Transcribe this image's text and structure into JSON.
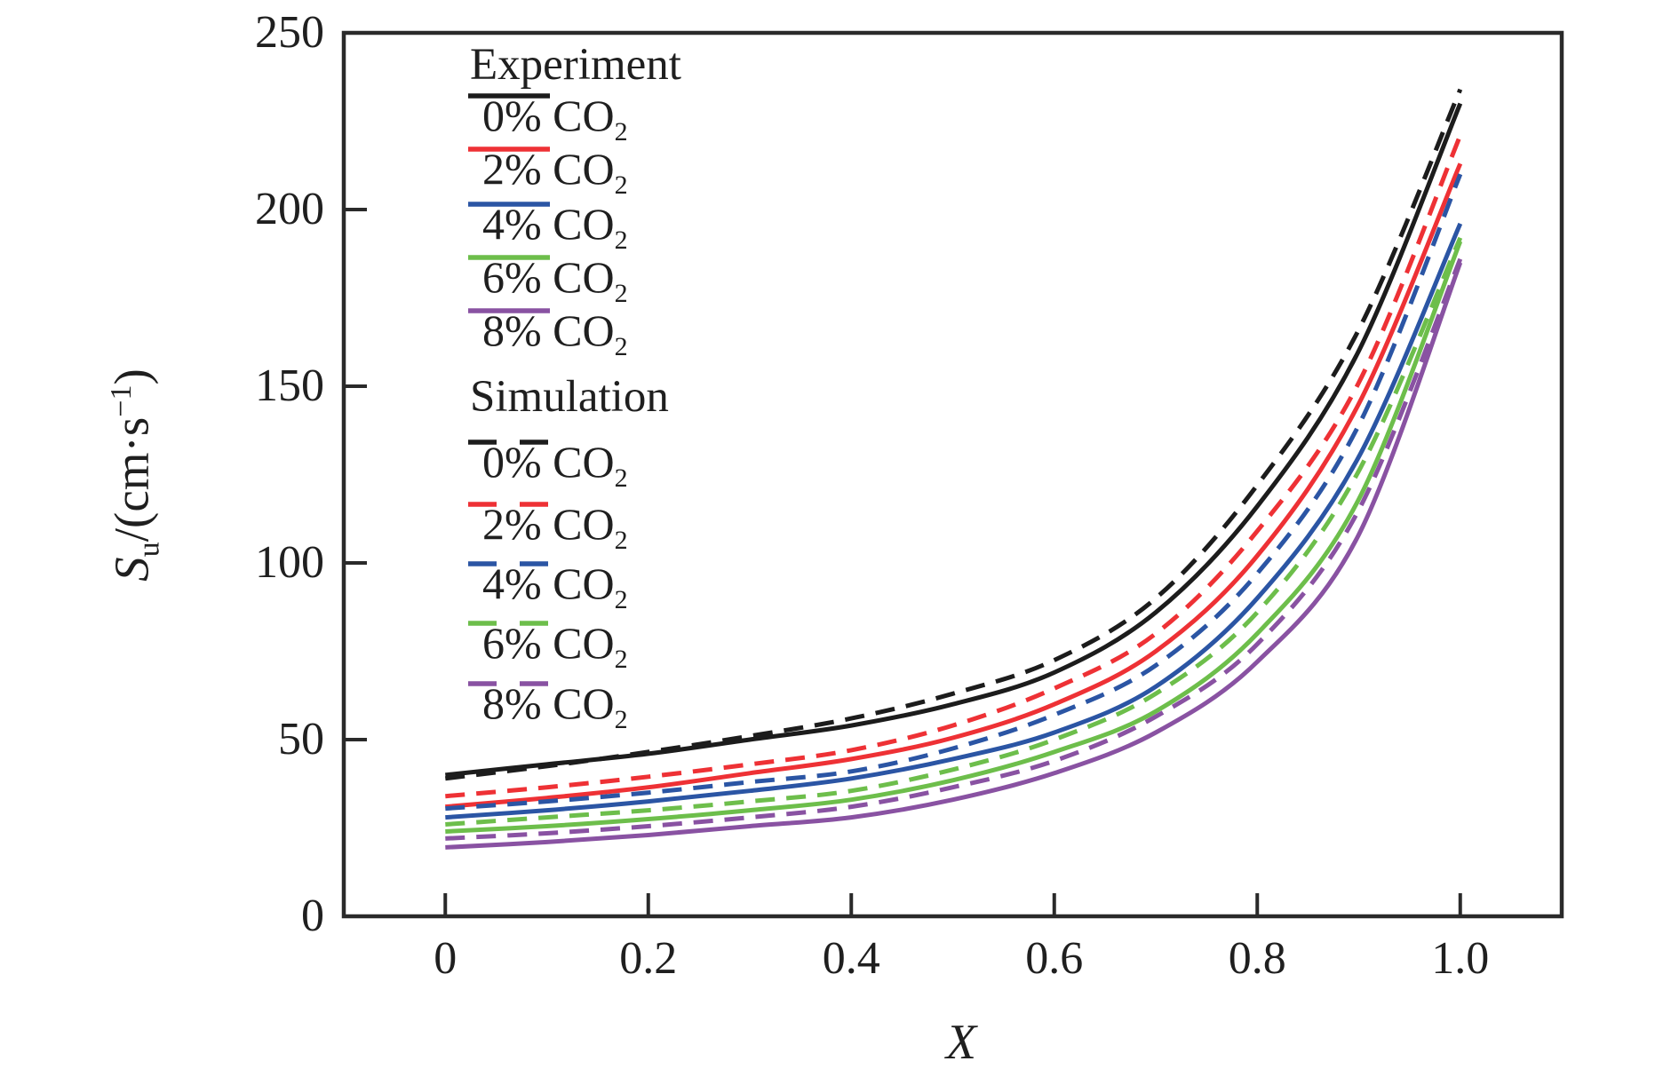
{
  "chart_data": {
    "type": "line",
    "title": "",
    "xlabel": "X",
    "ylabel": "Su/(cm·s−1)",
    "ylabel_parts": {
      "symbol": "S",
      "subscript": "u",
      "unit_open": "/(cm·s",
      "exponent": "−1",
      "unit_close": ")"
    },
    "xlim": [
      -0.1,
      1.1
    ],
    "ylim": [
      0,
      250
    ],
    "grid": false,
    "legend_position": "upper-left-inside",
    "x_ticks": {
      "values": [
        0,
        0.2,
        0.4,
        0.6,
        0.8,
        1.0
      ],
      "labels": [
        "0",
        "0.2",
        "0.4",
        "0.6",
        "0.8",
        "1.0"
      ]
    },
    "y_ticks": {
      "values": [
        0,
        50,
        100,
        150,
        200,
        250
      ],
      "labels": [
        "0",
        "50",
        "100",
        "150",
        "200",
        "250"
      ]
    },
    "x": [
      0,
      0.1,
      0.2,
      0.3,
      0.4,
      0.5,
      0.6,
      0.7,
      0.8,
      0.9,
      1.0
    ],
    "groups": [
      {
        "name": "Experiment",
        "style": "solid",
        "series": [
          {
            "label": "0% CO",
            "label_sub": "2",
            "color": "#1c1c1c",
            "values": [
              40,
              43,
              46,
              50,
              54,
              60,
              69,
              86,
              116,
              160,
              230
            ]
          },
          {
            "label": "2% CO",
            "label_sub": "2",
            "color": "#ee3135",
            "values": [
              31,
              33.5,
              36.5,
              40.5,
              44.5,
              50.5,
              60,
              75,
              102,
              145,
              213
            ]
          },
          {
            "label": "4% CO",
            "label_sub": "2",
            "color": "#2b55a4",
            "values": [
              28,
              30,
              32.5,
              35.5,
              39,
              44.5,
              52,
              65,
              90,
              130,
              196
            ]
          },
          {
            "label": "6% CO",
            "label_sub": "2",
            "color": "#6dbe4b",
            "values": [
              24,
              25.5,
              27.5,
              30,
              33,
              38.5,
              46.5,
              58,
              80,
              118,
              191
            ]
          },
          {
            "label": "8% CO",
            "label_sub": "2",
            "color": "#8952a2",
            "values": [
              19.5,
              21,
              23,
              25.5,
              28,
              33,
              40.5,
              52,
              72,
              108,
              185
            ]
          }
        ]
      },
      {
        "name": "Simulation",
        "style": "dashed",
        "series": [
          {
            "label": "0% CO",
            "label_sub": "2",
            "color": "#1c1c1c",
            "values": [
              39,
              42.5,
              46.5,
              51,
              56,
              63,
              72.5,
              90,
              122,
              166,
              234
            ]
          },
          {
            "label": "2% CO",
            "label_sub": "2",
            "color": "#ee3135",
            "values": [
              34,
              36.5,
              39.5,
              43,
              47,
              54,
              64.5,
              80,
              109,
              151,
              221
            ]
          },
          {
            "label": "4% CO",
            "label_sub": "2",
            "color": "#2b55a4",
            "values": [
              30.5,
              32.5,
              35,
              38,
              41,
              47.5,
              57,
              71,
              97,
              139,
              210
            ]
          },
          {
            "label": "6% CO",
            "label_sub": "2",
            "color": "#6dbe4b",
            "values": [
              26,
              28,
              30,
              32.5,
              35.5,
              41.5,
              50,
              63,
              86,
              126,
              192
            ]
          },
          {
            "label": "8% CO",
            "label_sub": "2",
            "color": "#8952a2",
            "values": [
              22,
              23.5,
              25.5,
              28,
              31,
              36.5,
              44,
              56.5,
              77,
              115,
              186
            ]
          }
        ]
      }
    ],
    "axis_color": "#2a2a2a"
  }
}
